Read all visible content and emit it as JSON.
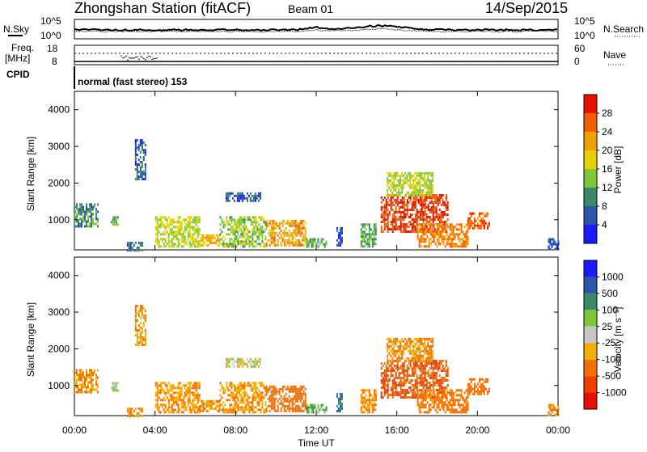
{
  "header": {
    "station": "Zhongshan Station (fitACF)",
    "beam": "Beam 01",
    "date": "14/Sep/2015"
  },
  "strip_labels": {
    "nsky": "N.Sky",
    "nsearch": "N.Search",
    "freq": "Freq.",
    "freq_unit": "[MHz]",
    "nave": "Nave",
    "cpid": "CPID",
    "mode": "normal (fast stereo) 153"
  },
  "strip_ticks": {
    "noise_left": [
      "10^5",
      "10^0"
    ],
    "noise_right": [
      "10^5",
      "10^0"
    ],
    "freq_left": [
      "18",
      "8"
    ],
    "nave_right": [
      "60",
      "0"
    ]
  },
  "colors": {
    "power_scale": [
      "#1a1aff",
      "#2a55aa",
      "#3a8a6a",
      "#7fc83a",
      "#e8d000",
      "#f0a000",
      "#f06000",
      "#e81000"
    ],
    "velocity_scale": [
      "#1a1aff",
      "#2a55aa",
      "#3a8a6a",
      "#7fc83a",
      "#c8c8c8",
      "#f0b000",
      "#f07000",
      "#f04000",
      "#e81000"
    ]
  },
  "chart_data": [
    {
      "type": "heatmap",
      "title": "Power",
      "ylabel": "Slant Range [km]",
      "xlabel": "Time UT",
      "y_ticks": [
        "1000",
        "2000",
        "3000",
        "4000"
      ],
      "x_ticks": [
        "00:00",
        "04:00",
        "08:00",
        "12:00",
        "16:00",
        "20:00",
        "00:00"
      ],
      "colorbar_label": "Power [dB]",
      "colorbar_ticks": [
        "4",
        "8",
        "12",
        "16",
        "20",
        "24",
        "28"
      ],
      "xlim": [
        0,
        24
      ],
      "ylim": [
        180,
        4500
      ],
      "regions": [
        {
          "x": [
            0.0,
            1.2
          ],
          "y": [
            800,
            1450
          ],
          "v": 10
        },
        {
          "x": [
            1.8,
            2.2
          ],
          "y": [
            900,
            1100
          ],
          "v": 12
        },
        {
          "x": [
            2.6,
            3.4
          ],
          "y": [
            200,
            400
          ],
          "v": 8
        },
        {
          "x": [
            3.0,
            3.5
          ],
          "y": [
            2100,
            3200
          ],
          "v": 6
        },
        {
          "x": [
            4.0,
            6.2
          ],
          "y": [
            300,
            1100
          ],
          "v": 16
        },
        {
          "x": [
            6.2,
            7.2
          ],
          "y": [
            300,
            600
          ],
          "v": 20
        },
        {
          "x": [
            7.5,
            9.2
          ],
          "y": [
            1550,
            1750
          ],
          "v": 6
        },
        {
          "x": [
            7.2,
            9.5
          ],
          "y": [
            300,
            1100
          ],
          "v": 14
        },
        {
          "x": [
            9.5,
            11.5
          ],
          "y": [
            300,
            1000
          ],
          "v": 22
        },
        {
          "x": [
            11.5,
            12.5
          ],
          "y": [
            300,
            500
          ],
          "v": 12
        },
        {
          "x": [
            13.0,
            13.3
          ],
          "y": [
            300,
            800
          ],
          "v": 6
        },
        {
          "x": [
            14.2,
            15.0
          ],
          "y": [
            300,
            900
          ],
          "v": 12
        },
        {
          "x": [
            15.2,
            18.5
          ],
          "y": [
            700,
            1700
          ],
          "v": 28
        },
        {
          "x": [
            15.5,
            17.8
          ],
          "y": [
            1700,
            2300
          ],
          "v": 16
        },
        {
          "x": [
            17.0,
            19.5
          ],
          "y": [
            300,
            900
          ],
          "v": 24
        },
        {
          "x": [
            19.5,
            20.6
          ],
          "y": [
            800,
            1200
          ],
          "v": 26
        },
        {
          "x": [
            23.5,
            24.0
          ],
          "y": [
            200,
            500
          ],
          "v": 6
        }
      ]
    },
    {
      "type": "heatmap",
      "title": "Velocity",
      "ylabel": "Slant Range [km]",
      "xlabel": "Time UT",
      "y_ticks": [
        "1000",
        "2000",
        "3000",
        "4000"
      ],
      "x_ticks": [
        "00:00",
        "04:00",
        "08:00",
        "12:00",
        "16:00",
        "20:00",
        "00:00"
      ],
      "colorbar_label": "Velocity [m s⁻¹]",
      "colorbar_ticks": [
        "1000",
        "500",
        "100",
        "25",
        "-25",
        "-100",
        "-500",
        "-1000"
      ],
      "xlim": [
        0,
        24
      ],
      "ylim": [
        180,
        4500
      ],
      "regions": [
        {
          "x": [
            0.0,
            1.2
          ],
          "y": [
            800,
            1450
          ],
          "v": -100
        },
        {
          "x": [
            1.8,
            2.2
          ],
          "y": [
            900,
            1100
          ],
          "v": 25
        },
        {
          "x": [
            2.6,
            3.4
          ],
          "y": [
            200,
            400
          ],
          "v": -100
        },
        {
          "x": [
            3.0,
            3.5
          ],
          "y": [
            2100,
            3200
          ],
          "v": -100
        },
        {
          "x": [
            4.0,
            6.2
          ],
          "y": [
            300,
            1100
          ],
          "v": -100
        },
        {
          "x": [
            6.2,
            7.2
          ],
          "y": [
            300,
            600
          ],
          "v": -100
        },
        {
          "x": [
            7.5,
            9.2
          ],
          "y": [
            1550,
            1750
          ],
          "v": 0
        },
        {
          "x": [
            7.2,
            9.5
          ],
          "y": [
            300,
            1100
          ],
          "v": -100
        },
        {
          "x": [
            9.5,
            11.5
          ],
          "y": [
            300,
            1000
          ],
          "v": -200
        },
        {
          "x": [
            11.5,
            12.5
          ],
          "y": [
            300,
            500
          ],
          "v": 100
        },
        {
          "x": [
            13.0,
            13.3
          ],
          "y": [
            300,
            800
          ],
          "v": 500
        },
        {
          "x": [
            14.2,
            15.0
          ],
          "y": [
            300,
            900
          ],
          "v": -100
        },
        {
          "x": [
            15.2,
            18.5
          ],
          "y": [
            700,
            1700
          ],
          "v": -500
        },
        {
          "x": [
            15.5,
            17.8
          ],
          "y": [
            1700,
            2300
          ],
          "v": -100
        },
        {
          "x": [
            17.0,
            19.5
          ],
          "y": [
            300,
            900
          ],
          "v": -150
        },
        {
          "x": [
            19.5,
            20.6
          ],
          "y": [
            800,
            1200
          ],
          "v": -200
        },
        {
          "x": [
            23.5,
            24.0
          ],
          "y": [
            200,
            500
          ],
          "v": -100
        }
      ]
    }
  ]
}
